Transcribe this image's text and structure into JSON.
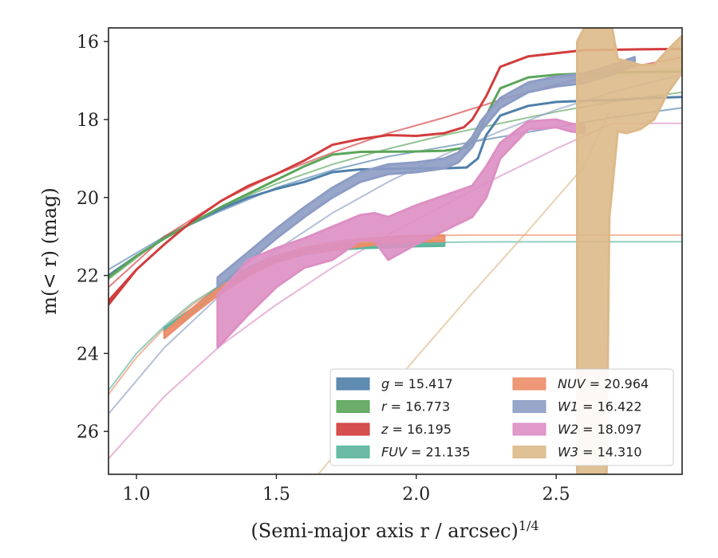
{
  "chart_data": {
    "type": "line",
    "xlabel": "(Semi-major axis r / arcsec)",
    "xlabel_exponent": "1/4",
    "ylabel": "m(< r) (mag)",
    "xlim": [
      0.9,
      2.95
    ],
    "ylim": [
      27.1,
      15.65
    ],
    "y_inverted": true,
    "grid": false,
    "legend_placement": "lower-right",
    "xticks": [
      1.0,
      1.5,
      2.0,
      2.5
    ],
    "xtick_labels": [
      "1.0",
      "1.5",
      "2.0",
      "2.5"
    ],
    "yticks": [
      16,
      18,
      20,
      22,
      24,
      26
    ],
    "ytick_labels": [
      "16",
      "18",
      "20",
      "22",
      "24",
      "26"
    ],
    "series": [
      {
        "name": "g",
        "label_value": "15.417",
        "color": "#4f7faa",
        "band": [
          [
            0.9,
            22.0,
            22.0
          ],
          [
            1.0,
            21.5,
            21.5
          ],
          [
            1.1,
            21.05,
            21.05
          ],
          [
            1.2,
            20.65,
            20.65
          ],
          [
            1.3,
            20.3,
            20.3
          ],
          [
            1.4,
            20.0,
            20.0
          ],
          [
            1.5,
            19.78,
            19.78
          ],
          [
            1.6,
            19.6,
            19.6
          ],
          [
            1.7,
            19.35,
            19.35
          ],
          [
            1.8,
            19.28,
            19.28
          ],
          [
            2.0,
            19.25,
            19.25
          ],
          [
            2.1,
            19.25,
            19.25
          ],
          [
            2.18,
            19.23,
            19.23
          ],
          [
            2.22,
            19.0,
            19.0
          ],
          [
            2.25,
            18.4,
            18.4
          ],
          [
            2.3,
            17.9,
            17.9
          ],
          [
            2.4,
            17.65,
            17.65
          ],
          [
            2.5,
            17.55,
            17.55
          ],
          [
            2.6,
            17.52,
            17.52
          ],
          [
            2.7,
            17.5,
            17.5
          ],
          [
            2.8,
            17.46,
            17.46
          ],
          [
            2.95,
            17.42,
            17.42
          ]
        ],
        "fit": [
          [
            0.9,
            21.85
          ],
          [
            1.1,
            21.0
          ],
          [
            1.3,
            20.35
          ],
          [
            1.5,
            19.75
          ],
          [
            1.7,
            19.3
          ],
          [
            1.9,
            18.95
          ],
          [
            2.1,
            18.7
          ],
          [
            2.3,
            18.45
          ],
          [
            2.5,
            18.2
          ],
          [
            2.7,
            17.95
          ],
          [
            2.95,
            17.7
          ]
        ]
      },
      {
        "name": "r",
        "label_value": "16.773",
        "color": "#5aa55a",
        "band": [
          [
            0.9,
            22.05,
            22.05
          ],
          [
            1.0,
            21.5,
            21.5
          ],
          [
            1.1,
            21.05,
            21.05
          ],
          [
            1.2,
            20.65,
            20.65
          ],
          [
            1.3,
            20.25,
            20.25
          ],
          [
            1.4,
            19.9,
            19.9
          ],
          [
            1.5,
            19.55,
            19.55
          ],
          [
            1.6,
            19.2,
            19.2
          ],
          [
            1.7,
            18.9,
            18.9
          ],
          [
            1.8,
            18.83,
            18.83
          ],
          [
            2.0,
            18.82,
            18.82
          ],
          [
            2.1,
            18.8,
            18.8
          ],
          [
            2.18,
            18.72,
            18.72
          ],
          [
            2.22,
            18.4,
            18.4
          ],
          [
            2.25,
            17.9,
            17.9
          ],
          [
            2.3,
            17.2,
            17.2
          ],
          [
            2.4,
            16.92,
            16.92
          ],
          [
            2.5,
            16.85,
            16.85
          ],
          [
            2.6,
            16.82,
            16.82
          ],
          [
            2.8,
            16.78,
            16.78
          ],
          [
            2.95,
            16.77,
            16.77
          ]
        ],
        "fit": [
          [
            0.9,
            22.1
          ],
          [
            1.1,
            21.0
          ],
          [
            1.3,
            20.25
          ],
          [
            1.5,
            19.65
          ],
          [
            1.7,
            19.15
          ],
          [
            1.9,
            18.75
          ],
          [
            2.1,
            18.4
          ],
          [
            2.3,
            18.1
          ],
          [
            2.5,
            17.8
          ],
          [
            2.7,
            17.55
          ],
          [
            2.95,
            17.3
          ]
        ]
      },
      {
        "name": "z",
        "label_value": "16.195",
        "color": "#d23c3c",
        "band": [
          [
            0.9,
            22.65,
            22.75
          ],
          [
            1.0,
            21.85,
            21.85
          ],
          [
            1.1,
            21.2,
            21.2
          ],
          [
            1.2,
            20.6,
            20.6
          ],
          [
            1.3,
            20.1,
            20.1
          ],
          [
            1.4,
            19.7,
            19.7
          ],
          [
            1.5,
            19.4,
            19.4
          ],
          [
            1.6,
            19.05,
            19.05
          ],
          [
            1.7,
            18.65,
            18.65
          ],
          [
            1.8,
            18.5,
            18.5
          ],
          [
            1.9,
            18.4,
            18.4
          ],
          [
            2.0,
            18.42,
            18.42
          ],
          [
            2.1,
            18.35,
            18.35
          ],
          [
            2.17,
            18.2,
            18.2
          ],
          [
            2.2,
            18.0,
            18.0
          ],
          [
            2.25,
            17.4,
            17.4
          ],
          [
            2.3,
            16.65,
            16.65
          ],
          [
            2.4,
            16.38,
            16.38
          ],
          [
            2.5,
            16.3,
            16.3
          ],
          [
            2.6,
            16.22,
            16.22
          ],
          [
            2.8,
            16.2,
            16.2
          ],
          [
            2.95,
            16.19,
            16.19
          ]
        ],
        "fit": [
          [
            0.9,
            22.3
          ],
          [
            1.1,
            21.0
          ],
          [
            1.3,
            20.1
          ],
          [
            1.5,
            19.4
          ],
          [
            1.7,
            18.85
          ],
          [
            1.9,
            18.35
          ],
          [
            2.1,
            17.95
          ],
          [
            2.3,
            17.5
          ],
          [
            2.5,
            17.1
          ],
          [
            2.7,
            16.75
          ],
          [
            2.95,
            16.4
          ]
        ]
      },
      {
        "name": "FUV",
        "label_value": "21.135",
        "color": "#5bb49c",
        "band": [
          [
            1.1,
            23.35,
            23.45
          ],
          [
            1.2,
            22.85,
            22.95
          ],
          [
            1.3,
            22.25,
            22.35
          ],
          [
            1.4,
            21.8,
            21.9
          ],
          [
            1.5,
            21.5,
            21.6
          ],
          [
            1.6,
            21.35,
            21.45
          ],
          [
            1.7,
            21.25,
            21.35
          ],
          [
            1.8,
            21.2,
            21.3
          ],
          [
            1.9,
            21.18,
            21.28
          ],
          [
            2.0,
            21.15,
            21.25
          ],
          [
            2.1,
            21.14,
            21.24
          ]
        ],
        "fit": [
          [
            0.9,
            24.95
          ],
          [
            1.0,
            24.0
          ],
          [
            1.1,
            23.3
          ],
          [
            1.2,
            22.7
          ],
          [
            1.3,
            22.25
          ],
          [
            1.4,
            21.85
          ],
          [
            1.5,
            21.6
          ],
          [
            1.6,
            21.4
          ],
          [
            1.7,
            21.3
          ],
          [
            1.8,
            21.22
          ],
          [
            2.0,
            21.16
          ],
          [
            2.2,
            21.14
          ],
          [
            2.5,
            21.135
          ],
          [
            2.95,
            21.135
          ]
        ]
      },
      {
        "name": "NUV",
        "label_value": "20.964",
        "color": "#ec8d69",
        "band": [
          [
            1.1,
            23.45,
            23.6
          ],
          [
            1.2,
            22.85,
            23.0
          ],
          [
            1.3,
            22.3,
            22.45
          ],
          [
            1.4,
            21.85,
            22.0
          ],
          [
            1.5,
            21.5,
            21.65
          ],
          [
            1.6,
            21.3,
            21.45
          ],
          [
            1.7,
            21.2,
            21.35
          ],
          [
            1.8,
            21.1,
            21.25
          ],
          [
            1.9,
            21.02,
            21.17
          ],
          [
            2.0,
            20.98,
            21.13
          ],
          [
            2.1,
            20.97,
            21.12
          ]
        ],
        "fit": [
          [
            0.9,
            25.05
          ],
          [
            1.0,
            24.1
          ],
          [
            1.1,
            23.35
          ],
          [
            1.2,
            22.75
          ],
          [
            1.3,
            22.25
          ],
          [
            1.4,
            21.8
          ],
          [
            1.5,
            21.5
          ],
          [
            1.6,
            21.28
          ],
          [
            1.7,
            21.14
          ],
          [
            1.8,
            21.05
          ],
          [
            2.0,
            20.98
          ],
          [
            2.2,
            20.965
          ],
          [
            2.5,
            20.964
          ],
          [
            2.95,
            20.964
          ]
        ]
      },
      {
        "name": "W1",
        "label_value": "16.422",
        "color": "#8d9cc4",
        "band": [
          [
            1.29,
            22.05,
            22.3
          ],
          [
            1.4,
            21.4,
            21.65
          ],
          [
            1.5,
            20.8,
            21.05
          ],
          [
            1.6,
            20.25,
            20.5
          ],
          [
            1.7,
            19.75,
            20.0
          ],
          [
            1.8,
            19.35,
            19.6
          ],
          [
            1.9,
            19.15,
            19.4
          ],
          [
            2.0,
            19.1,
            19.35
          ],
          [
            2.1,
            19.0,
            19.25
          ],
          [
            2.15,
            18.85,
            19.1
          ],
          [
            2.2,
            18.45,
            18.7
          ],
          [
            2.23,
            18.05,
            18.3
          ],
          [
            2.3,
            17.45,
            17.7
          ],
          [
            2.4,
            17.05,
            17.3
          ],
          [
            2.5,
            16.9,
            17.15
          ],
          [
            2.6,
            16.82,
            17.07
          ],
          [
            2.7,
            16.6,
            16.85
          ],
          [
            2.78,
            16.4,
            16.6
          ]
        ],
        "fit": [
          [
            0.9,
            25.55
          ],
          [
            1.1,
            23.85
          ],
          [
            1.3,
            22.5
          ],
          [
            1.5,
            21.35
          ],
          [
            1.7,
            20.4
          ],
          [
            1.9,
            19.6
          ],
          [
            2.1,
            18.9
          ],
          [
            2.3,
            18.3
          ],
          [
            2.5,
            17.75
          ],
          [
            2.7,
            17.3
          ],
          [
            2.95,
            16.85
          ]
        ]
      },
      {
        "name": "W2",
        "label_value": "18.097",
        "color": "#dd8fc3",
        "band": [
          [
            1.29,
            22.5,
            23.85
          ],
          [
            1.4,
            21.6,
            23.0
          ],
          [
            1.5,
            21.3,
            22.3
          ],
          [
            1.6,
            21.05,
            21.8
          ],
          [
            1.7,
            20.75,
            21.6
          ],
          [
            1.8,
            20.45,
            21.1
          ],
          [
            1.85,
            20.4,
            21.1
          ],
          [
            1.9,
            20.5,
            21.6
          ],
          [
            2.0,
            20.2,
            21.2
          ],
          [
            2.1,
            19.95,
            20.85
          ],
          [
            2.2,
            19.7,
            20.5
          ],
          [
            2.25,
            19.2,
            20.0
          ],
          [
            2.3,
            18.6,
            19.0
          ],
          [
            2.4,
            18.05,
            18.25
          ],
          [
            2.5,
            18.0,
            18.2
          ],
          [
            2.55,
            18.1,
            18.3
          ],
          [
            2.6,
            18.15,
            18.35
          ]
        ],
        "fit": [
          [
            0.9,
            26.7
          ],
          [
            1.1,
            25.1
          ],
          [
            1.3,
            23.8
          ],
          [
            1.5,
            22.75
          ],
          [
            1.7,
            21.8
          ],
          [
            1.9,
            20.95
          ],
          [
            2.1,
            20.2
          ],
          [
            2.3,
            19.45
          ],
          [
            2.5,
            18.75
          ],
          [
            2.7,
            18.1
          ],
          [
            2.95,
            18.1
          ]
        ]
      },
      {
        "name": "W3",
        "label_value": "14.310",
        "color": "#ddb98a",
        "band": [
          [
            2.575,
            16.0,
            27.1
          ],
          [
            2.6,
            15.65,
            27.1
          ],
          [
            2.62,
            15.65,
            27.1
          ],
          [
            2.64,
            15.65,
            27.1
          ],
          [
            2.66,
            15.65,
            27.1
          ],
          [
            2.68,
            15.65,
            27.1
          ],
          [
            2.69,
            15.65,
            20.5
          ],
          [
            2.7,
            15.65,
            19.8
          ],
          [
            2.72,
            16.45,
            18.3
          ],
          [
            2.75,
            16.5,
            18.35
          ],
          [
            2.8,
            16.6,
            18.25
          ],
          [
            2.85,
            16.6,
            18.0
          ],
          [
            2.9,
            16.2,
            17.3
          ],
          [
            2.95,
            15.85,
            16.8
          ]
        ],
        "fit": [
          [
            1.65,
            27.1
          ],
          [
            1.8,
            25.8
          ],
          [
            2.0,
            24.1
          ],
          [
            2.2,
            22.45
          ],
          [
            2.4,
            20.85
          ],
          [
            2.6,
            19.2
          ],
          [
            2.69,
            17.8
          ]
        ]
      }
    ]
  }
}
